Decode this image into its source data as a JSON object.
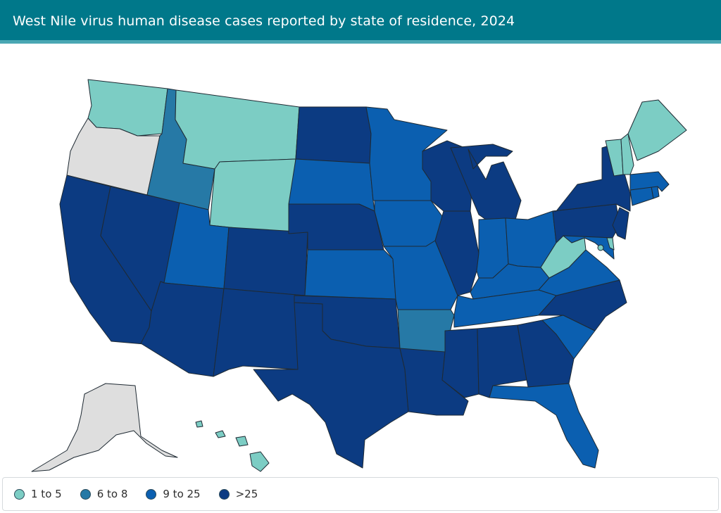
{
  "header": {
    "title": "West Nile virus human disease cases reported by state of residence, 2024"
  },
  "colors": {
    "header_bg": "#00788a",
    "header_stripe": "#4aa7b3",
    "no_cases": "#dedede",
    "bin_1_5": "#7ccdc4",
    "bin_6_8": "#2679a6",
    "bin_9_25": "#0b5fb0",
    "bin_gt25": "#0c3b82"
  },
  "legend": {
    "items": [
      {
        "label": "1 to 5",
        "color": "#7ccdc4"
      },
      {
        "label": "6 to 8",
        "color": "#2679a6"
      },
      {
        "label": "9 to 25",
        "color": "#0b5fb0"
      },
      {
        "label": ">25",
        "color": "#0c3b82"
      }
    ]
  },
  "map_data": {
    "no_cases": [
      "Oregon",
      "Alaska"
    ],
    "1 to 5": [
      "Washington",
      "Montana",
      "Wyoming",
      "West Virginia",
      "Maine",
      "Vermont",
      "New Hampshire",
      "Delaware",
      "District of Columbia",
      "Hawaii"
    ],
    "6 to 8": [
      "Idaho",
      "Arkansas"
    ],
    "9 to 25": [
      "Utah",
      "South Dakota",
      "Minnesota",
      "Kansas",
      "Iowa",
      "Missouri",
      "Indiana",
      "Ohio",
      "Kentucky",
      "Tennessee",
      "Virginia",
      "South Carolina",
      "Florida",
      "Massachusetts",
      "Connecticut",
      "Rhode Island",
      "Maryland"
    ],
    ">25": [
      "California",
      "Nevada",
      "Arizona",
      "Colorado",
      "New Mexico",
      "North Dakota",
      "Nebraska",
      "Oklahoma",
      "Texas",
      "Louisiana",
      "Mississippi",
      "Alabama",
      "Georgia",
      "North Carolina",
      "Illinois",
      "Wisconsin",
      "Michigan",
      "Pennsylvania",
      "New York",
      "New Jersey"
    ]
  }
}
